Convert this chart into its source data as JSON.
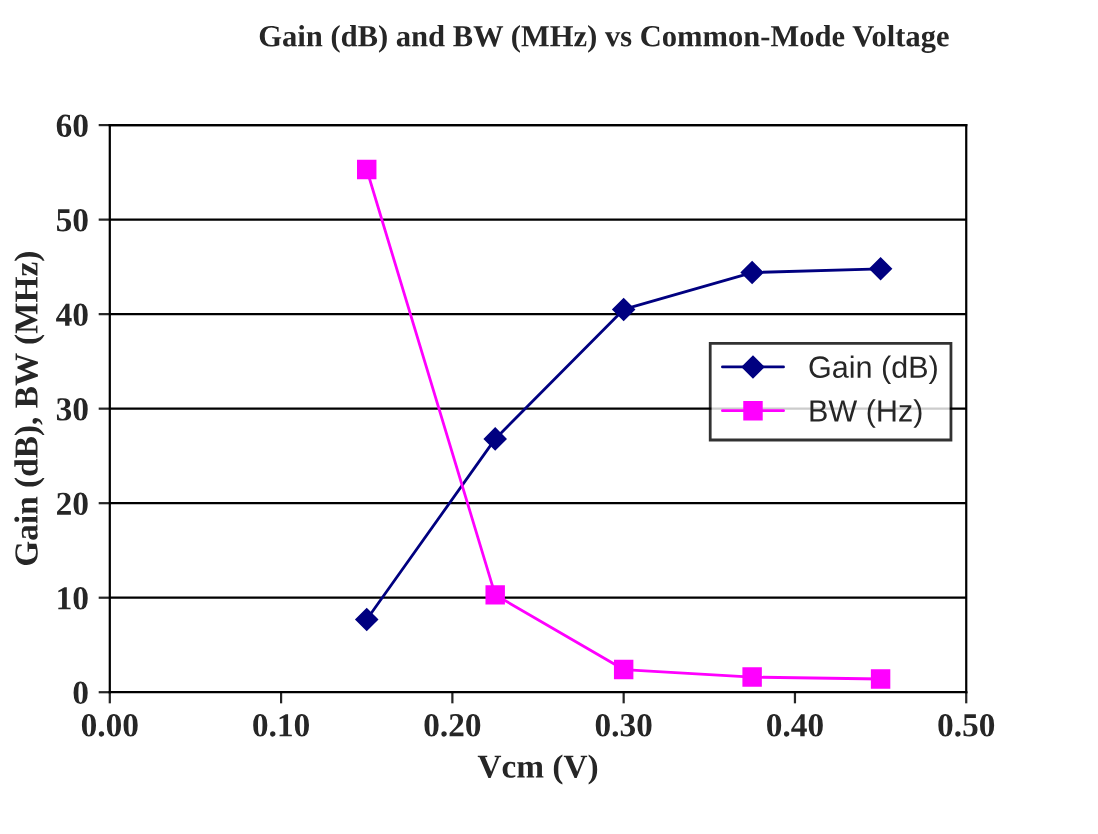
{
  "chart_data": {
    "type": "line",
    "title": "Gain (dB) and BW (MHz) vs Common-Mode Voltage",
    "xlabel": "Vcm (V)",
    "ylabel": "Gain (dB), BW (MHz)",
    "x": [
      0.15,
      0.225,
      0.3,
      0.375,
      0.45
    ],
    "series": [
      {
        "name": "Gain (dB)",
        "color": "#000080",
        "marker": "diamond",
        "values": [
          7.7,
          26.8,
          40.5,
          44.4,
          44.8
        ]
      },
      {
        "name": "BW (Hz)",
        "color": "#ff00ff",
        "marker": "square",
        "values": [
          55.3,
          10.3,
          2.4,
          1.6,
          1.4
        ]
      }
    ],
    "xlim": [
      0,
      0.5
    ],
    "xticks": [
      {
        "value": 0,
        "label": "0.00"
      },
      {
        "value": 0.1,
        "label": "0.10"
      },
      {
        "value": 0.2,
        "label": "0.20"
      },
      {
        "value": 0.3,
        "label": "0.30"
      },
      {
        "value": 0.4,
        "label": "0.40"
      },
      {
        "value": 0.5,
        "label": "0.50"
      }
    ],
    "ylim": [
      0,
      60
    ],
    "yticks": [
      0,
      10,
      20,
      30,
      40,
      50,
      60
    ],
    "grid": "y",
    "legend": "right"
  }
}
